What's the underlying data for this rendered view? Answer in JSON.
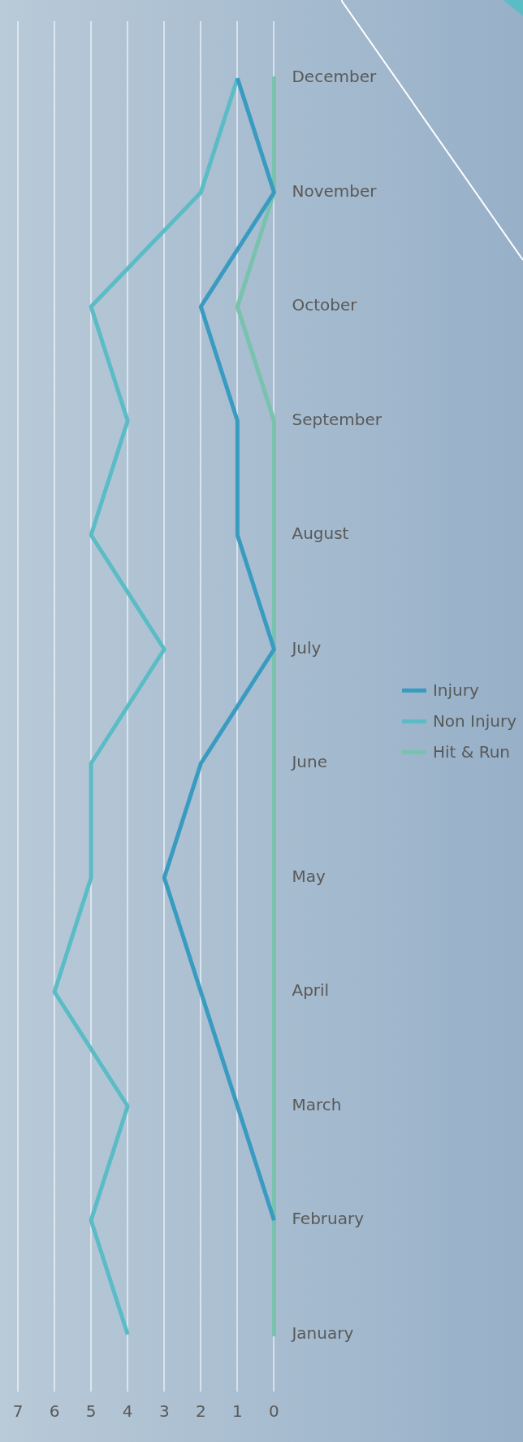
{
  "chart_data": {
    "type": "line",
    "orientation": "horizontal",
    "categories": [
      "December",
      "November",
      "October",
      "September",
      "August",
      "July",
      "June",
      "May",
      "April",
      "March",
      "February",
      "January"
    ],
    "series": [
      {
        "name": "Injury",
        "color": "#3a9bc1",
        "values": [
          1,
          0,
          2,
          1,
          1,
          0,
          2,
          3,
          2,
          1,
          0,
          null
        ]
      },
      {
        "name": "Non Injury",
        "color": "#5bbcc6",
        "values": [
          1,
          2,
          5,
          4,
          5,
          3,
          5,
          5,
          6,
          4,
          5,
          4
        ]
      },
      {
        "name": "Hit & Run",
        "color": "#78c2ae",
        "values": [
          0,
          0,
          1,
          0,
          0,
          0,
          0,
          0,
          0,
          0,
          0,
          0
        ]
      }
    ],
    "xlim": [
      7,
      0
    ],
    "xticks": [
      0,
      1,
      2,
      3,
      4,
      5,
      6,
      7
    ],
    "grid": "x",
    "legend": "right",
    "marker": "none",
    "line_style": "solid"
  }
}
